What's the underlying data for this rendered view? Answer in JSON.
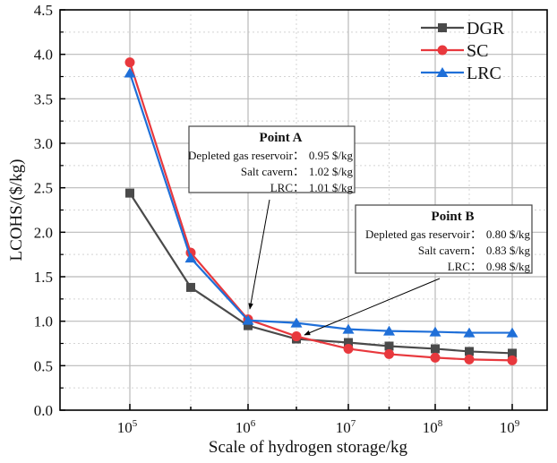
{
  "chart_data": {
    "type": "line",
    "title": "",
    "xlabel": "Scale of hydrogen storage/kg",
    "ylabel": "LCOHS/($/kg)",
    "x_scale": "log",
    "x": [
      100000,
      316228,
      1000000,
      3162278,
      10000000,
      31622777,
      100000000,
      316227766,
      1000000000
    ],
    "x_tick_labels": [
      {
        "base": "10",
        "exp": "5"
      },
      {
        "base": "10",
        "exp": "6"
      },
      {
        "base": "10",
        "exp": "7"
      },
      {
        "base": "10",
        "exp": "8"
      },
      {
        "base": "10",
        "exp": "9"
      }
    ],
    "ylim": [
      0.0,
      4.5
    ],
    "y_ticks": [
      "0.0",
      "0.5",
      "1.0",
      "1.5",
      "2.0",
      "2.5",
      "3.0",
      "3.5",
      "4.0",
      "4.5"
    ],
    "grid": true,
    "legend_position": "top-right",
    "series": [
      {
        "name": "DGR",
        "color": "#4a4a4a",
        "marker": "square",
        "values": [
          2.44,
          1.38,
          0.95,
          0.8,
          0.76,
          0.72,
          0.69,
          0.66,
          0.64
        ]
      },
      {
        "name": "SC",
        "color": "#e8383d",
        "marker": "circle",
        "values": [
          3.91,
          1.77,
          1.02,
          0.83,
          0.69,
          0.63,
          0.59,
          0.57,
          0.56
        ]
      },
      {
        "name": "LRC",
        "color": "#1f6fd8",
        "marker": "triangle",
        "values": [
          3.79,
          1.71,
          1.01,
          0.98,
          0.91,
          0.89,
          0.88,
          0.87,
          0.87
        ]
      }
    ],
    "annotations": [
      {
        "title": "Point A",
        "points_to_x_index": 2,
        "lines": [
          {
            "label": "Depleted gas reservoir：",
            "value": "0.95 $/kg"
          },
          {
            "label": "Salt cavern：",
            "value": "1.02 $/kg"
          },
          {
            "label": "LRC：",
            "value": "1.01 $/kg"
          }
        ]
      },
      {
        "title": "Point B",
        "points_to_x_index": 3,
        "lines": [
          {
            "label": "Depleted gas reservoir：",
            "value": "0.80 $/kg"
          },
          {
            "label": "Salt cavern：",
            "value": "0.83 $/kg"
          },
          {
            "label": "LRC：",
            "value": "0.98 $/kg"
          }
        ]
      }
    ]
  }
}
